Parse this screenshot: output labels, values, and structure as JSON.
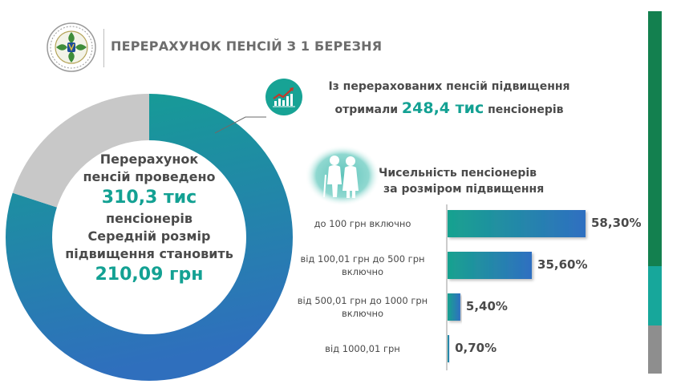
{
  "header": {
    "title": "ПЕРЕРАХУНОК ПЕНСІЙ З 1 БЕРЕЗНЯ",
    "logo_icon": "emblem-icon"
  },
  "donut": {
    "line1": "Перерахунок",
    "line2": "пенсій проведено",
    "amount": "310,3 тис",
    "line3": "пенсіонерів",
    "line4": "Середній розмір",
    "line5": "підвищення становить",
    "average": "210,09 грн",
    "colors": {
      "teal": "#159e95",
      "blue": "#2f72bd",
      "grey": "#c8c8c8"
    }
  },
  "info": {
    "icon": "trend-up-icon",
    "line1": "Із перерахованих пенсій підвищення",
    "line2_pre": "отримали",
    "line2_value": "248,4 тис",
    "line2_post": "пенсіонерів"
  },
  "distribution": {
    "icon": "seniors-icon",
    "title_line1": "Чисельність пенсіонерів",
    "title_line2": "за розміром підвищення"
  },
  "sidebar_bar": {
    "colors": [
      "#13804f",
      "#17a79b",
      "#8e8e8e"
    ]
  },
  "chart_data": [
    {
      "type": "pie",
      "categories": [
        "",
        ""
      ],
      "values": [
        80,
        20
      ],
      "colors": [
        "#159e95",
        "#c8c8c8"
      ]
    },
    {
      "type": "bar",
      "orientation": "horizontal",
      "categories": [
        [
          "до 100 грн включно"
        ],
        [
          "від 100,01 грн до 500 грн",
          "включно"
        ],
        [
          "від 500,01 грн до 1000 грн",
          "включно"
        ],
        [
          "від 1000,01 грн"
        ]
      ],
      "values": [
        58.3,
        35.6,
        5.4,
        0.7
      ],
      "labels": [
        "58,30%",
        "35,60%",
        "5,40%",
        "0,70%"
      ],
      "xlim": [
        0,
        58.3
      ],
      "color_from": "#18a28f",
      "color_to": "#2f6fc1"
    }
  ]
}
